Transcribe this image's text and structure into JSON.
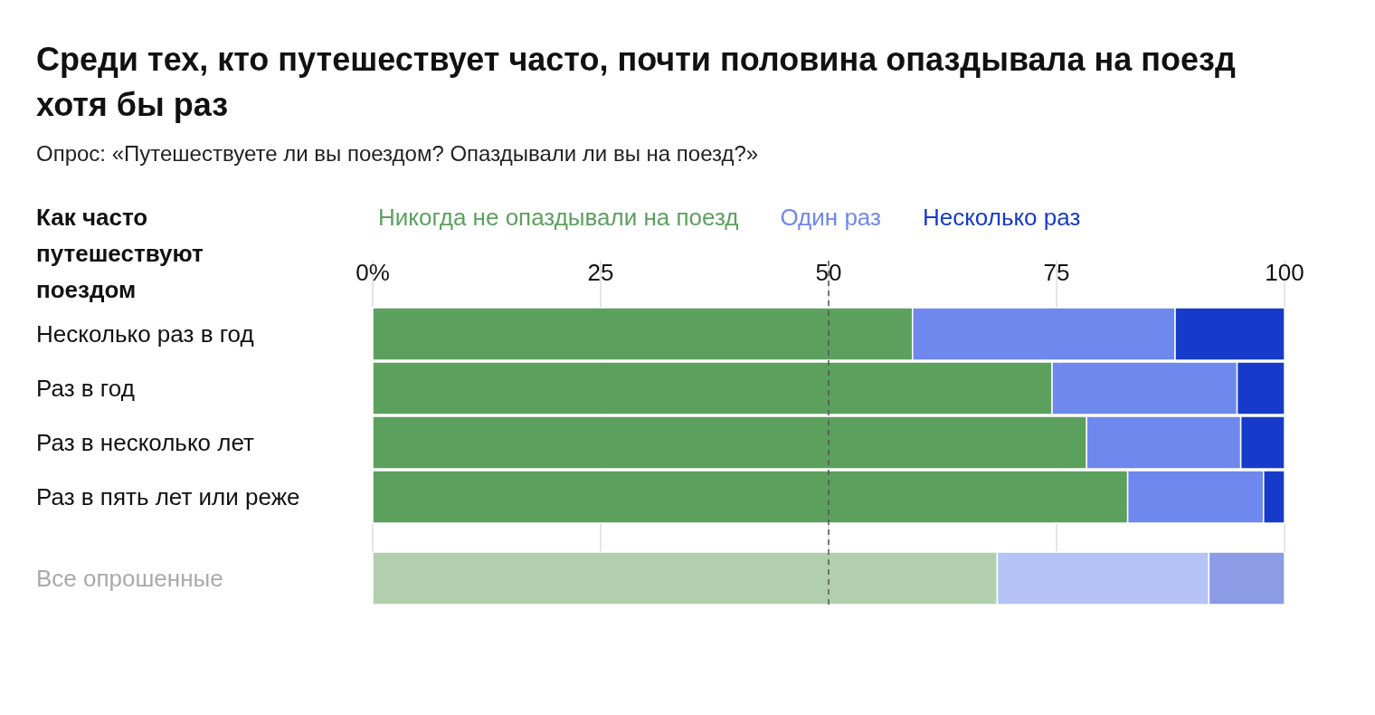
{
  "chart_data": {
    "type": "bar",
    "orientation": "horizontal",
    "stacked": true,
    "title": "Среди тех, кто путешествует часто, почти половина опаздывала на поезд хотя бы раз",
    "subtitle": "Опрос: «Путешествуете ли вы поездом? Опаздывали ли вы на поезд?»",
    "ylabel": "Как часто путешествуют поездом",
    "categories": [
      "Несколько раз в год",
      "Раз в год",
      "Раз в несколько лет",
      "Раз в пять лет или реже",
      "Все опрошенные"
    ],
    "series": [
      {
        "name": "Никогда не опаздывали на поезд",
        "color": "#5ca05e",
        "colors": [
          "#5ca05e",
          "#5ca05e",
          "#5ca05e",
          "#5ca05e",
          "#b1cfae"
        ],
        "values": [
          59.2,
          74.5,
          78.3,
          82.8,
          68.5
        ]
      },
      {
        "name": "Один раз",
        "color": "#6f88ed",
        "colors": [
          "#6f88ed",
          "#6f88ed",
          "#6f88ed",
          "#6f88ed",
          "#b5c3f6"
        ],
        "values": [
          28.8,
          20.3,
          16.9,
          14.9,
          23.2
        ]
      },
      {
        "name": "Несколько раз",
        "color": "#163bca",
        "colors": [
          "#163bca",
          "#163bca",
          "#163bca",
          "#163bca",
          "#8b9be6"
        ],
        "values": [
          12.0,
          5.2,
          4.8,
          2.3,
          8.3
        ]
      }
    ],
    "xlim": [
      0,
      100
    ],
    "xticks": [
      {
        "value": 0,
        "label": "0%"
      },
      25,
      50,
      75,
      100
    ],
    "ref_lines": [
      {
        "axis": "x",
        "value": 50,
        "line_style": "dashed",
        "color": "#555555"
      }
    ],
    "grid": "x",
    "legend": "top"
  }
}
